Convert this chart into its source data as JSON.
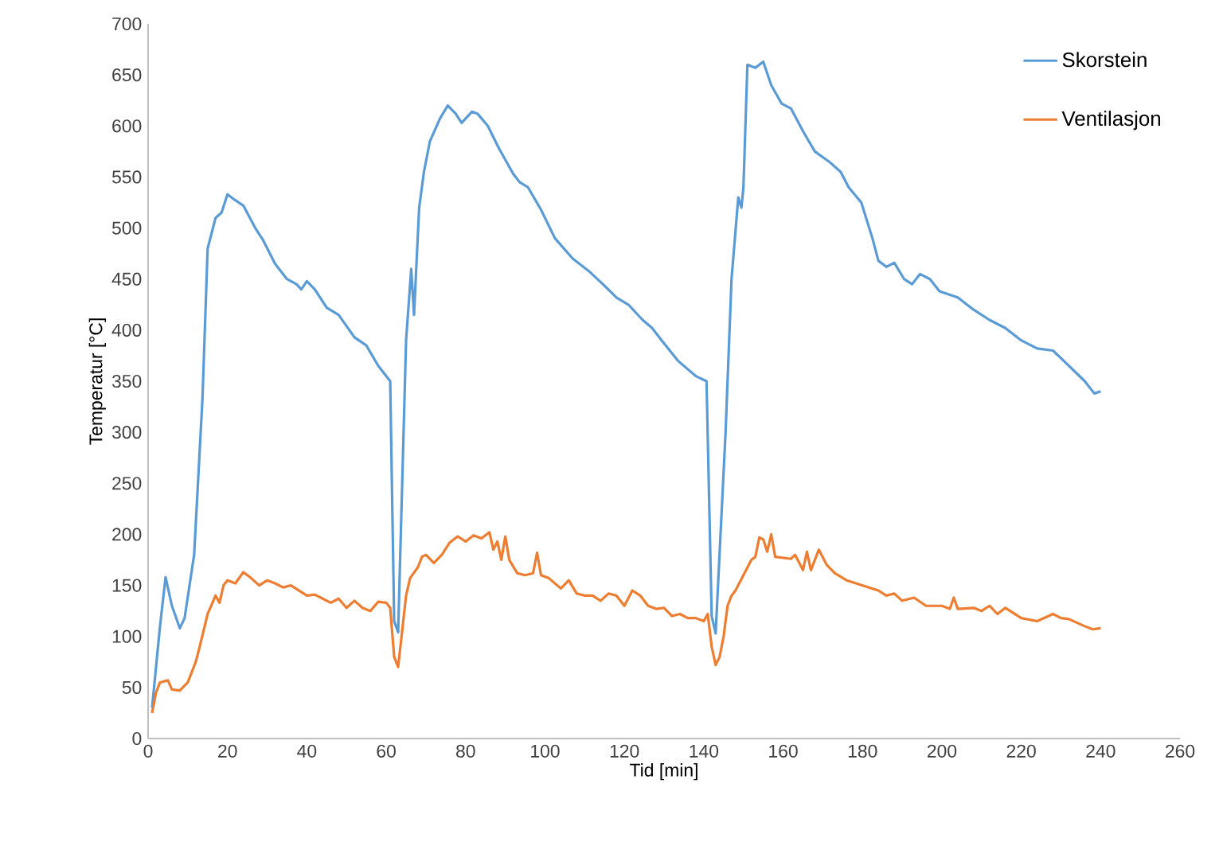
{
  "chart_data": {
    "type": "line",
    "xlabel": "Tid [min]",
    "ylabel": "Temperatur [°C]",
    "xlim": [
      0,
      260
    ],
    "xticks": [
      0,
      20,
      40,
      60,
      80,
      100,
      120,
      140,
      160,
      180,
      200,
      220,
      240,
      260
    ],
    "ylim": [
      0,
      700
    ],
    "yticks": [
      0,
      50,
      100,
      150,
      200,
      250,
      300,
      350,
      400,
      450,
      500,
      550,
      600,
      650,
      700
    ],
    "grid": false,
    "legend": "top right",
    "marker": "none",
    "line_style": "solid",
    "series": [
      {
        "name": "Skorstein",
        "color": "#5b9bd5",
        "x": [
          1,
          2,
          3,
          4.4,
          6,
          8,
          9.2,
          11.6,
          13.7,
          15,
          17,
          18.5,
          20,
          21.7,
          24,
          27,
          29,
          32,
          35,
          37.4,
          38.6,
          40,
          42,
          45,
          48,
          52,
          55,
          58,
          60,
          61,
          62,
          63,
          65,
          66.3,
          67,
          68.3,
          69.5,
          71,
          73.5,
          75.5,
          77.5,
          79,
          81.6,
          83,
          85.6,
          88.4,
          92,
          93.6,
          95.7,
          99,
          102.5,
          107,
          111,
          114.6,
          118,
          121,
          124.6,
          127,
          129.4,
          133.5,
          138,
          140.7,
          142,
          143,
          145.5,
          147,
          148.7,
          149.5,
          150,
          151,
          153,
          155,
          157,
          159.6,
          162,
          165,
          168,
          171.6,
          174.5,
          176.5,
          179.7,
          182.5,
          184,
          186,
          188,
          190.5,
          192.5,
          194.5,
          197,
          199.4,
          204,
          208,
          212,
          216,
          220,
          224,
          228,
          230.7,
          236,
          238.4,
          240
        ],
        "values": [
          30,
          70,
          110,
          158,
          130,
          108,
          118,
          180,
          333,
          480,
          510,
          515,
          533,
          528,
          522,
          500,
          488,
          465,
          450,
          445,
          440,
          448,
          440,
          422,
          415,
          393,
          385,
          365,
          355,
          350,
          115,
          104,
          390,
          460,
          415,
          520,
          555,
          585,
          607,
          620,
          612,
          603,
          614,
          612,
          600,
          578,
          553,
          545,
          540,
          518,
          490,
          470,
          458,
          445,
          432,
          425,
          410,
          402,
          390,
          370,
          355,
          350,
          120,
          103,
          300,
          450,
          530,
          520,
          540,
          660,
          657,
          663,
          640,
          622,
          617,
          595,
          575,
          565,
          555,
          540,
          525,
          490,
          468,
          462,
          466,
          450,
          445,
          455,
          450,
          438,
          432,
          420,
          410,
          402,
          390,
          382,
          380,
          370,
          350,
          338,
          340
        ]
      },
      {
        "name": "Ventilasjon",
        "color": "#ed7d31",
        "x": [
          1,
          2,
          3,
          5,
          6,
          8,
          10,
          12,
          13,
          15,
          17,
          18,
          19,
          20,
          22,
          24,
          26,
          28,
          30,
          32,
          34,
          36,
          38,
          40,
          42,
          44,
          46,
          48,
          50,
          52,
          54,
          56,
          58,
          60,
          61,
          62,
          63,
          64,
          65,
          66,
          68,
          69,
          70,
          72,
          74,
          76,
          78,
          80,
          82,
          84,
          86,
          87,
          88,
          89,
          90,
          91,
          93,
          95,
          97,
          98,
          99,
          101,
          104,
          106,
          108,
          110,
          112,
          114,
          116,
          118,
          120,
          122,
          124,
          126,
          128,
          130,
          132,
          134,
          136,
          138,
          140,
          141,
          142,
          143,
          144,
          145,
          146,
          147,
          148,
          150,
          152,
          153,
          154,
          155,
          156,
          157,
          158,
          160,
          162,
          163,
          165,
          166,
          167,
          169,
          171,
          173,
          176,
          180,
          184,
          186,
          188,
          190,
          193,
          196,
          200,
          202,
          203,
          204,
          208,
          210,
          212,
          214,
          216,
          220,
          224,
          228,
          230,
          232,
          236,
          238,
          240
        ],
        "values": [
          25,
          45,
          55,
          57,
          48,
          47,
          55,
          75,
          90,
          122,
          140,
          133,
          150,
          155,
          152,
          163,
          157,
          150,
          155,
          152,
          148,
          150,
          145,
          140,
          141,
          137,
          133,
          137,
          128,
          135,
          128,
          125,
          134,
          133,
          128,
          80,
          70,
          105,
          140,
          157,
          168,
          178,
          180,
          172,
          180,
          192,
          198,
          193,
          199,
          196,
          202,
          185,
          193,
          175,
          198,
          175,
          162,
          160,
          162,
          182,
          160,
          157,
          147,
          155,
          142,
          140,
          140,
          135,
          142,
          140,
          130,
          145,
          140,
          130,
          127,
          128,
          120,
          122,
          118,
          118,
          115,
          122,
          90,
          72,
          80,
          100,
          130,
          140,
          145,
          160,
          175,
          178,
          197,
          195,
          183,
          200,
          178,
          177,
          176,
          180,
          165,
          183,
          165,
          185,
          170,
          162,
          155,
          150,
          145,
          140,
          142,
          135,
          138,
          130,
          130,
          127,
          138,
          127,
          128,
          125,
          130,
          122,
          128,
          118,
          115,
          122,
          118,
          117,
          110,
          107,
          108
        ]
      }
    ]
  }
}
